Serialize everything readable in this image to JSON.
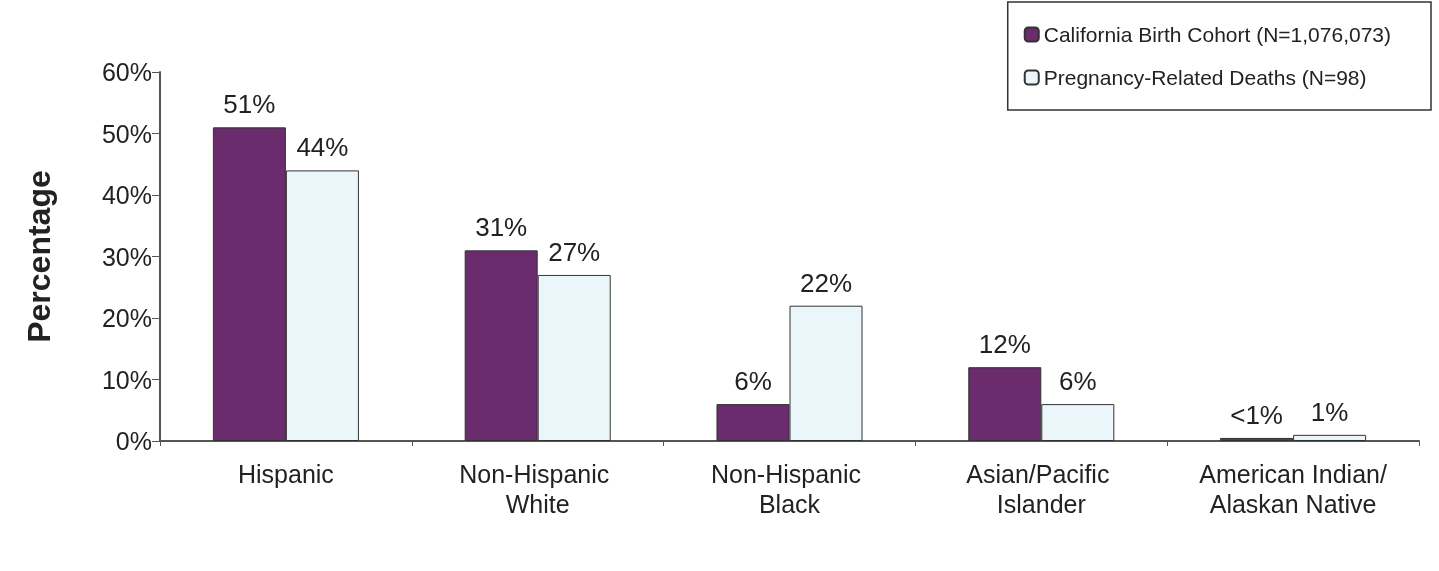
{
  "chart_data": {
    "type": "bar",
    "ylabel": "Percentage",
    "categories": [
      "Hispanic",
      "Non-Hispanic White",
      "Non-Hispanic Black",
      "Asian/Pacific Islander",
      "American Indian/Alaskan Native"
    ],
    "series": [
      {
        "name": "California Birth Cohort (N=1,076,073)",
        "color": "#6b2c6e",
        "values": [
          51,
          31,
          6,
          12,
          0.5
        ],
        "value_labels": [
          "51%",
          "31%",
          "6%",
          "12%",
          "<1%"
        ]
      },
      {
        "name": "Pregnancy-Related Deaths (N=98)",
        "color": "#eaf6fa",
        "values": [
          44,
          27,
          22,
          6,
          1
        ],
        "value_labels": [
          "44%",
          "27%",
          "22%",
          "6%",
          "1%"
        ]
      }
    ],
    "ylim": [
      0,
      60
    ],
    "yticks": [
      {
        "value": 0,
        "label": "0%"
      },
      {
        "value": 10,
        "label": "10%"
      },
      {
        "value": 20,
        "label": "20%"
      },
      {
        "value": 30,
        "label": "30%"
      },
      {
        "value": 40,
        "label": "40%"
      },
      {
        "value": 50,
        "label": "50%"
      },
      {
        "value": 60,
        "label": "60%"
      }
    ],
    "grid": false,
    "legend": "top right"
  }
}
